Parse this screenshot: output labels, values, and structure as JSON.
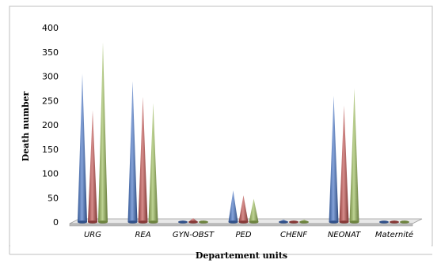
{
  "chart_data": {
    "type": "bar",
    "bar_shape": "cone-3d",
    "title": "",
    "xlabel": "Departement units",
    "ylabel": "Death number",
    "ylim": [
      0,
      400
    ],
    "yticks": [
      0,
      50,
      100,
      150,
      200,
      250,
      300,
      350,
      400
    ],
    "categories": [
      "URG",
      "REA",
      "GYN-OBST",
      "PED",
      "CHENF",
      "NEONAT",
      "Maternité"
    ],
    "series": [
      {
        "color": "#4472C4",
        "values": [
          305,
          290,
          3,
          65,
          5,
          260,
          2
        ]
      },
      {
        "color": "#C0504D",
        "values": [
          230,
          258,
          8,
          55,
          3,
          240,
          3
        ]
      },
      {
        "color": "#9BBB59",
        "values": [
          370,
          245,
          3,
          48,
          5,
          275,
          3
        ]
      }
    ],
    "grid": false,
    "legend": "none",
    "frame_color": "#BFBFBF"
  }
}
